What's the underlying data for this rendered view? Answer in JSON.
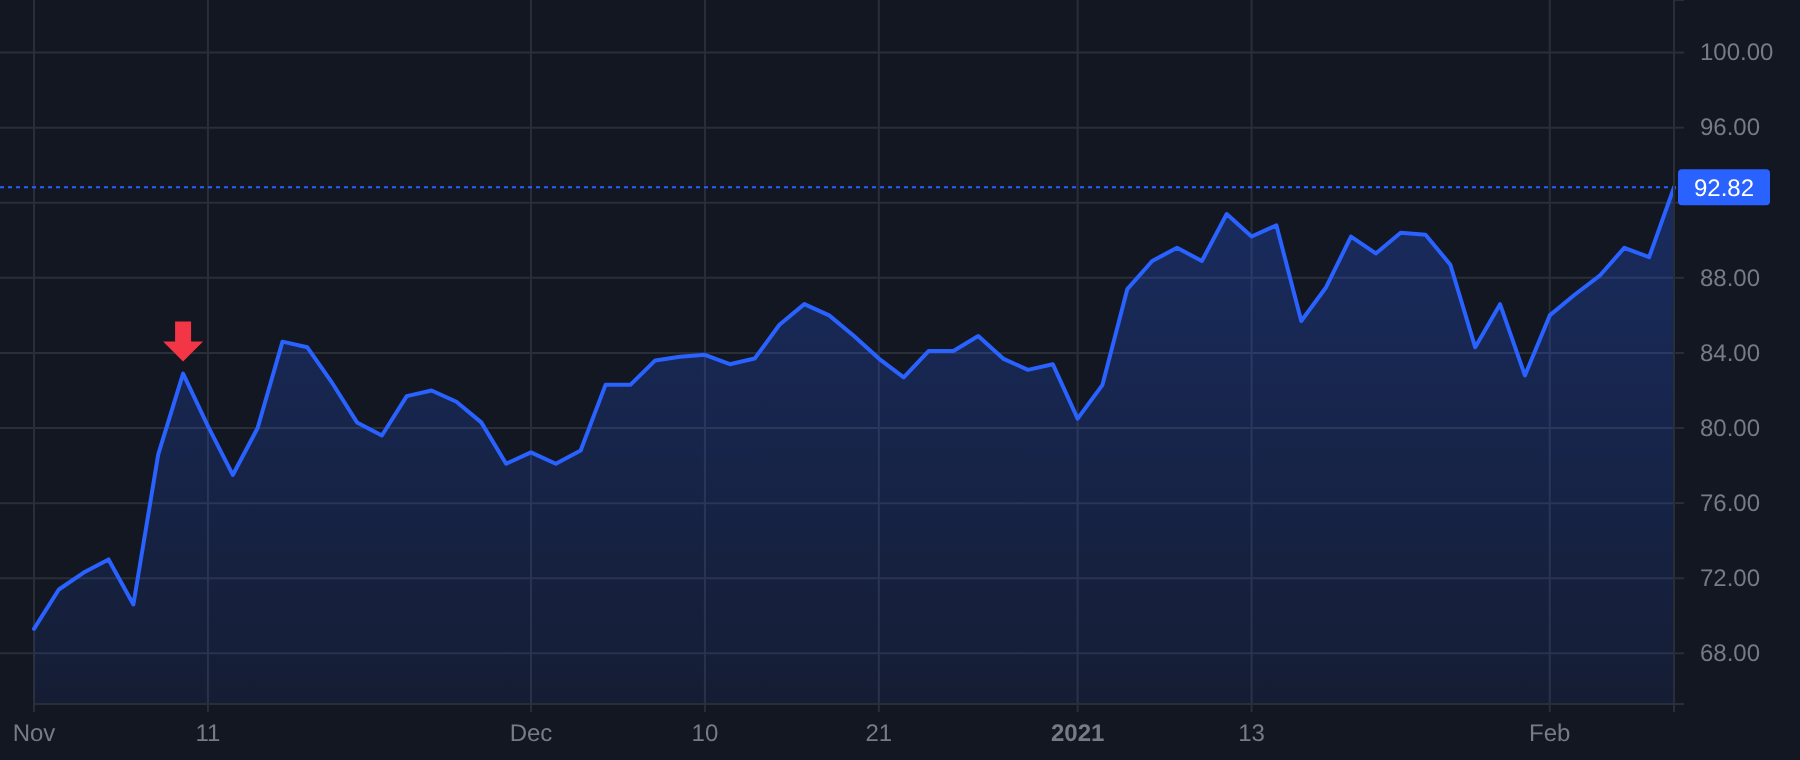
{
  "chart_data": {
    "type": "area",
    "categories": [
      "Nov",
      null,
      null,
      null,
      null,
      null,
      null,
      "11",
      null,
      null,
      null,
      null,
      null,
      null,
      null,
      null,
      null,
      null,
      null,
      null,
      "Dec",
      null,
      null,
      null,
      null,
      null,
      null,
      "10",
      null,
      null,
      null,
      null,
      null,
      null,
      "21",
      null,
      null,
      null,
      null,
      null,
      null,
      null,
      "2021",
      null,
      null,
      null,
      null,
      null,
      null,
      "13",
      null,
      null,
      null,
      null,
      null,
      null,
      null,
      null,
      null,
      null,
      null,
      "Feb",
      null,
      null,
      null,
      null,
      null
    ],
    "series": [
      {
        "color": "#2962ff",
        "values": [
          69.3,
          71.4,
          72.3,
          73.0,
          70.6,
          78.6,
          82.9,
          80.1,
          77.5,
          80.0,
          84.6,
          84.3,
          82.4,
          80.3,
          79.6,
          81.7,
          82.0,
          81.4,
          80.3,
          78.1,
          78.7,
          78.1,
          78.8,
          82.3,
          82.3,
          83.6,
          83.8,
          83.9,
          83.4,
          83.7,
          85.5,
          86.6,
          86.0,
          84.9,
          83.7,
          82.7,
          84.1,
          84.1,
          84.9,
          83.7,
          83.1,
          83.4,
          80.5,
          82.3,
          87.4,
          88.9,
          89.6,
          88.9,
          91.4,
          90.2,
          90.8,
          85.7,
          87.5,
          90.2,
          89.3,
          90.4,
          90.3,
          88.7,
          84.3,
          86.6,
          82.8,
          86.0,
          87.1,
          88.1,
          89.6,
          89.1,
          92.82
        ]
      }
    ],
    "ylim": [
      65.3,
      102.8
    ],
    "yticks": [
      {
        "value": 68,
        "label": "68.00"
      },
      {
        "value": 72,
        "label": "72.00"
      },
      {
        "value": 76,
        "label": "76.00"
      },
      {
        "value": 80,
        "label": "80.00"
      },
      {
        "value": 84,
        "label": "84.00"
      },
      {
        "value": 88,
        "label": "88.00"
      },
      {
        "value": 92,
        "label": null
      },
      {
        "value": 96,
        "label": "96.00"
      },
      {
        "value": 100,
        "label": "100.00"
      }
    ],
    "ref_lines": [
      {
        "axis": "y",
        "value": 92.82,
        "label": "92.82",
        "color": "#2962ff",
        "line_style": "dotted"
      }
    ],
    "grid": true
  }
}
